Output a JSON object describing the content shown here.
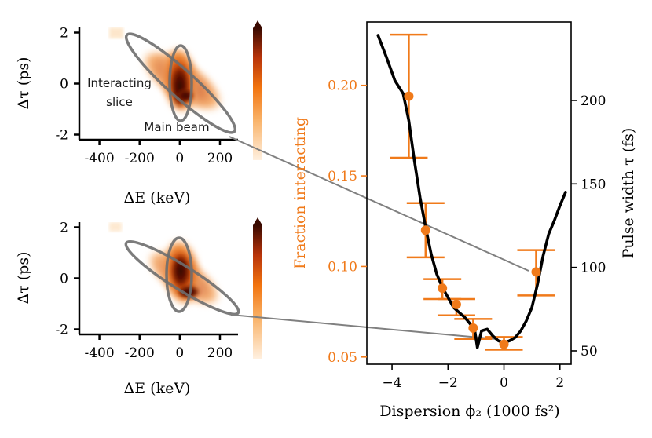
{
  "colors": {
    "orange": "#f07a1a",
    "black": "#000000",
    "connector": "#808080",
    "ellipse": "#6e6e6e",
    "heat_low": "#fff0e0",
    "heat_mid": "#f2740f",
    "heat_high": "#4a0d00"
  },
  "chart_data": [
    {
      "type": "heatmap",
      "panel": "top-left",
      "xlabel": "ΔE (keV)",
      "ylabel": "Δτ (ps)",
      "xlim": [
        -500,
        290
      ],
      "ylim": [
        -2.2,
        2.2
      ],
      "xticks": [
        "-400",
        "-200",
        "0",
        "200"
      ],
      "xtick_values": [
        -400,
        -200,
        0,
        200
      ],
      "yticks": [
        "2",
        "0",
        "-2"
      ],
      "ytick_values": [
        2,
        0,
        -2
      ],
      "annotations": [
        "Interacting slice",
        "Main beam"
      ],
      "annotation_lines": [
        [
          "Interacting",
          "slice"
        ],
        [
          "Main beam"
        ]
      ],
      "main_beam_ellipse": {
        "center": [
          0,
          0
        ],
        "half_length_E": 200,
        "half_length_tau": 1.75
      },
      "interacting_ellipse": {
        "center": [
          0,
          0
        ],
        "half_width_E": 45,
        "half_height_tau": 1.45
      },
      "colorbar": "orange-to-black, extend max"
    },
    {
      "type": "heatmap",
      "panel": "bottom-left",
      "xlabel": "ΔE (keV)",
      "ylabel": "Δτ (ps)",
      "xlim": [
        -500,
        290
      ],
      "ylim": [
        -2.2,
        2.2
      ],
      "xticks": [
        "-400",
        "-200",
        "0",
        "200"
      ],
      "xtick_values": [
        -400,
        -200,
        0,
        200
      ],
      "yticks": [
        "2",
        "0",
        "-2"
      ],
      "ytick_values": [
        2,
        0,
        -2
      ],
      "main_beam_ellipse": {
        "center": [
          0,
          0
        ],
        "half_length_E": 200,
        "half_length_tau": 1.35
      },
      "interacting_ellipse": {
        "center": [
          0,
          0
        ],
        "half_width_E": 50,
        "half_height_tau": 1.5
      },
      "colorbar": "orange-to-black, extend max"
    },
    {
      "type": "scatter",
      "panel": "right",
      "xlabel": "Dispersion ϕ₂ (1000 fs²)",
      "ylabel_left": "Fraction interacting",
      "ylabel_right": "Pulse width τ (fs)",
      "xlim": [
        -4.9,
        2.4
      ],
      "ylim_left": [
        0.046,
        0.235
      ],
      "ylim_right": [
        42,
        247
      ],
      "xticks": [
        "−4",
        "−2",
        "0",
        "2"
      ],
      "xtick_values": [
        -4,
        -2,
        0,
        2
      ],
      "yticks_left": [
        "0.05",
        "0.10",
        "0.15",
        "0.20"
      ],
      "ytick_left_values": [
        0.05,
        0.1,
        0.15,
        0.2
      ],
      "yticks_right": [
        "50",
        "100",
        "150",
        "200"
      ],
      "ytick_right_values": [
        50,
        100,
        150,
        200
      ],
      "series": [
        {
          "axis": "left",
          "points": [
            {
              "x": -3.4,
              "y": 0.194,
              "yerr_low": 0.16,
              "yerr_high": 0.228
            },
            {
              "x": -2.8,
              "y": 0.12,
              "yerr_low": 0.105,
              "yerr_high": 0.135
            },
            {
              "x": -2.2,
              "y": 0.088,
              "yerr_low": 0.082,
              "yerr_high": 0.093
            },
            {
              "x": -1.7,
              "y": 0.079,
              "yerr_low": 0.073,
              "yerr_high": 0.082
            },
            {
              "x": -1.1,
              "y": 0.066,
              "yerr_low": 0.06,
              "yerr_high": 0.071
            },
            {
              "x": 0.0,
              "y": 0.057,
              "yerr_low": 0.054,
              "yerr_high": 0.061
            },
            {
              "x": 1.15,
              "y": 0.097,
              "yerr_low": 0.084,
              "yerr_high": 0.109
            }
          ]
        },
        {
          "axis": "right",
          "x": [
            -4.5,
            -4.2,
            -3.9,
            -3.6,
            -3.4,
            -3.2,
            -3.0,
            -2.8,
            -2.6,
            -2.4,
            -2.2,
            -2.0,
            -1.8,
            -1.6,
            -1.4,
            -1.2,
            -1.05,
            -0.95,
            -0.8,
            -0.6,
            -0.4,
            -0.2,
            0.0,
            0.2,
            0.4,
            0.6,
            0.8,
            1.0,
            1.2,
            1.4,
            1.6,
            1.8,
            2.0,
            2.2
          ],
          "y": [
            239,
            226,
            212,
            204,
            188,
            164,
            142,
            124,
            108,
            96,
            88,
            82,
            76,
            73,
            70,
            66,
            63,
            52,
            62,
            63,
            59,
            56,
            55,
            56,
            58,
            62,
            68,
            76,
            90,
            107,
            120,
            128,
            137,
            145
          ]
        }
      ]
    }
  ]
}
